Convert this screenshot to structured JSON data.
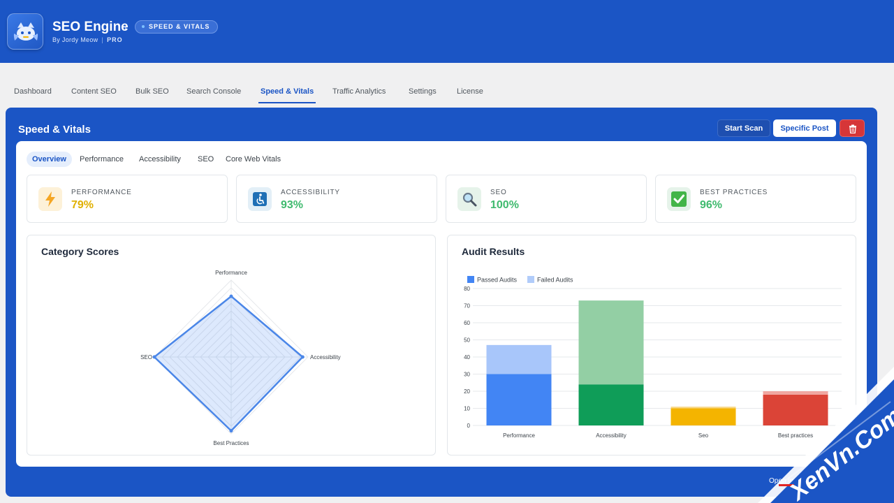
{
  "app": {
    "title": "SEO Engine",
    "byline": "By Jordy Meow",
    "tier": "PRO",
    "breadcrumb": "SPEED & VITALS"
  },
  "nav": {
    "tabs": [
      "Dashboard",
      "Content SEO",
      "Bulk SEO",
      "Search Console",
      "Speed & Vitals",
      "Traffic Analytics",
      "Settings",
      "License"
    ],
    "active": "Speed & Vitals"
  },
  "panel": {
    "title": "Speed & Vitals",
    "start_scan_label": "Start Scan",
    "specific_post_label": "Specific Post",
    "footer_link": "Open in PageSpeed Insights ↗"
  },
  "subtabs": {
    "items": [
      "Overview",
      "Performance",
      "Accessibility",
      "SEO",
      "Core Web Vitals"
    ],
    "active": "Overview"
  },
  "stats": [
    {
      "label": "PERFORMANCE",
      "value": "79%",
      "icon": "lightning-icon",
      "color": "#e0b000",
      "bg": "#fdf1d8"
    },
    {
      "label": "ACCESSIBILITY",
      "value": "93%",
      "icon": "accessibility-icon",
      "color": "#3fba6e",
      "bg": "#e3eff7"
    },
    {
      "label": "SEO",
      "value": "100%",
      "icon": "magnifier-icon",
      "color": "#3fba6e",
      "bg": "#e6f3ea"
    },
    {
      "label": "BEST PRACTICES",
      "value": "96%",
      "icon": "checkmark-icon",
      "color": "#3fba6e",
      "bg": "#e6f3ea"
    }
  ],
  "colors": {
    "brand": "#1b55c5",
    "danger": "#d63638",
    "good": "#3fba6e",
    "warning": "#e0b000"
  },
  "category_scores": {
    "title": "Category Scores",
    "chart_data": {
      "type": "radar",
      "axes": [
        "Performance",
        "Accessibility",
        "Best Practices",
        "SEO"
      ],
      "values": [
        79,
        93,
        96,
        100
      ],
      "rmax": 100,
      "grid_levels": 10
    }
  },
  "audit_results": {
    "title": "Audit Results",
    "chart_data": {
      "type": "bar",
      "stacked": true,
      "categories": [
        "Performance",
        "Accessibility",
        "Seo",
        "Best practices"
      ],
      "series": [
        {
          "name": "Passed Audits",
          "values": [
            30,
            24,
            10,
            18
          ],
          "colors": [
            "#4285f4",
            "#0f9d58",
            "#f4b400",
            "#db4437"
          ]
        },
        {
          "name": "Failed Audits",
          "values": [
            17,
            49,
            1,
            2
          ],
          "colors": [
            "#a8c6fa",
            "#93cfa4",
            "#f8d98a",
            "#f0a6a0"
          ]
        }
      ],
      "ylim": [
        0,
        80
      ],
      "yticks": [
        0,
        10,
        20,
        30,
        40,
        50,
        60,
        70,
        80
      ],
      "legend": "top-left",
      "grid": true
    }
  }
}
